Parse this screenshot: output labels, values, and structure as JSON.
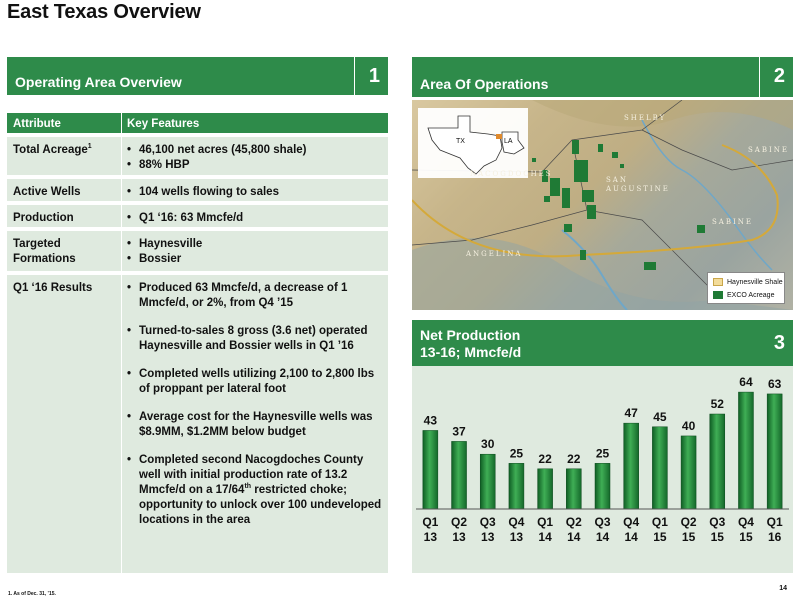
{
  "page": {
    "title": "East Texas Overview",
    "page_number": "14"
  },
  "footnote": "1.  As of Dec. 31, ’15.",
  "section1": {
    "title": "Operating Area Overview",
    "number": "1",
    "headers": {
      "attribute": "Attribute",
      "features": "Key Features"
    },
    "rows": [
      {
        "attribute": "Total Acreage",
        "attribute_sup": "1",
        "features": [
          "46,100 net acres (45,800 shale)",
          "88% HBP"
        ]
      },
      {
        "attribute": "Active Wells",
        "features": [
          "104 wells flowing to sales"
        ]
      },
      {
        "attribute": "Production",
        "features": [
          "Q1 ‘16: 63 Mmcfe/d"
        ]
      },
      {
        "attribute": "Targeted Formations",
        "features": [
          "Haynesville",
          "Bossier"
        ]
      },
      {
        "attribute": "Q1 ‘16 Results",
        "features": [
          "Produced 63 Mmcfe/d, a decrease of 1 Mmcfe/d, or 2%, from Q4 ’15",
          "Turned-to-sales 8 gross (3.6 net) operated Haynesville and Bossier wells in Q1 ’16",
          "Completed wells utilizing 2,100 to 2,800 lbs of proppant per lateral foot",
          "Average cost for the Haynesville wells was $8.9MM, $1.2MM below budget"
        ],
        "last_feature": {
          "before": "Completed second Nacogdoches County well with initial production rate of 13.2 Mmcfe/d on a 17/64",
          "sup": "th",
          "after": " restricted choke; opportunity to unlock over 100 undeveloped locations in the area"
        }
      }
    ]
  },
  "section2": {
    "title": "Area Of Operations",
    "number": "2",
    "map_labels": [
      "SHELBY",
      "SABINE",
      "NACOGDOCHES",
      "SAN AUGUSTINE",
      "SABINE",
      "ANGELINA"
    ],
    "inset_labels": [
      "TX",
      "LA"
    ],
    "legend": [
      {
        "label": "Haynesville Shale",
        "color": "#f3dc9a"
      },
      {
        "label": "EXCO Acreage",
        "color": "#1f7a35"
      }
    ]
  },
  "section3": {
    "title_line1": "Net Production",
    "title_line2": "13-16; Mmcfe/d",
    "number": "3"
  },
  "chart_data": {
    "type": "bar",
    "categories": [
      "Q1 13",
      "Q2 13",
      "Q3 13",
      "Q4 13",
      "Q1 14",
      "Q2 14",
      "Q3 14",
      "Q4 14",
      "Q1 15",
      "Q2 15",
      "Q3 15",
      "Q4 15",
      "Q1 16"
    ],
    "category_lines": [
      [
        "Q1",
        "13"
      ],
      [
        "Q2",
        "13"
      ],
      [
        "Q3",
        "13"
      ],
      [
        "Q4",
        "13"
      ],
      [
        "Q1",
        "14"
      ],
      [
        "Q2",
        "14"
      ],
      [
        "Q3",
        "14"
      ],
      [
        "Q4",
        "14"
      ],
      [
        "Q1",
        "15"
      ],
      [
        "Q2",
        "15"
      ],
      [
        "Q3",
        "15"
      ],
      [
        "Q4",
        "15"
      ],
      [
        "Q1",
        "16"
      ]
    ],
    "values": [
      43,
      37,
      30,
      25,
      22,
      22,
      25,
      47,
      45,
      40,
      52,
      64,
      63
    ],
    "data_labels": [
      "43",
      "37",
      "30",
      "25",
      "22",
      "22",
      "25",
      "47",
      "45",
      "40",
      "52",
      "64",
      "63"
    ],
    "ylim": [
      0,
      75
    ],
    "grid": false,
    "bar_color": "#1f8a3b"
  }
}
